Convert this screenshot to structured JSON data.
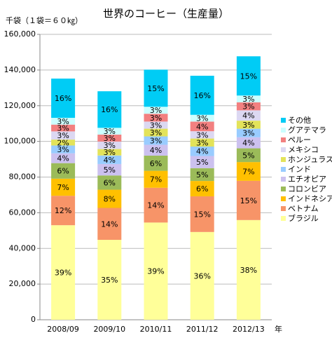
{
  "chart_data": {
    "type": "stacked_bar",
    "title": "世界のコーヒー（生産量）",
    "y_axis_label": "千袋（１袋＝６０㎏）",
    "x_axis_label": "年",
    "categories": [
      "2008/09",
      "2009/10",
      "2010/11",
      "2011/12",
      "2012/13"
    ],
    "ylim": [
      0,
      160000
    ],
    "yticks": [
      0,
      {
        "value": 20000,
        "label": "20,000"
      },
      {
        "value": 40000,
        "label": "40,000"
      },
      {
        "value": 60000,
        "label": "60,000"
      },
      {
        "value": 80000,
        "label": "80,000"
      },
      {
        "value": 100000,
        "label": "100,000"
      },
      {
        "value": 120000,
        "label": "120,000"
      },
      {
        "value": 140000,
        "label": "140,000"
      },
      {
        "value": 160000,
        "label": "160,000"
      }
    ],
    "grid": true,
    "legend": "right",
    "series": [
      {
        "name": "ブラジル",
        "color": "#ffff99",
        "values": [
          53000,
          44800,
          54500,
          49200,
          55900
        ],
        "value_labels": [
          "39%",
          "35%",
          "39%",
          "36%",
          "38%"
        ]
      },
      {
        "name": "ベトナム",
        "color": "#f79468",
        "values": [
          16500,
          17900,
          19500,
          20000,
          22000
        ],
        "value_labels": [
          "12%",
          "14%",
          "14%",
          "15%",
          "15%"
        ]
      },
      {
        "name": "インドネシア",
        "color": "#ffc000",
        "values": [
          9600,
          10200,
          9500,
          8600,
          10500
        ],
        "value_labels": [
          "7%",
          "8%",
          "7%",
          "6%",
          "7%"
        ]
      },
      {
        "name": "コロンビア",
        "color": "#9bbb59",
        "values": [
          8700,
          8000,
          8500,
          7200,
          7700
        ],
        "value_labels": [
          "6%",
          "6%",
          "6%",
          "5%",
          "5%"
        ]
      },
      {
        "name": "エチオピア",
        "color": "#ccc1ef",
        "values": [
          5500,
          6400,
          6100,
          6800,
          6200
        ],
        "value_labels": [
          "4%",
          "5%",
          "4%",
          "5%",
          "4%"
        ]
      },
      {
        "name": "インド",
        "color": "#99ccff",
        "values": [
          4400,
          4800,
          4700,
          5300,
          4800
        ],
        "value_labels": [
          "3%",
          "4%",
          "3%",
          "4%",
          "3%"
        ]
      },
      {
        "name": "ホンジュラス",
        "color": "#e3e35a",
        "values": [
          3300,
          3600,
          4300,
          4500,
          4500
        ],
        "value_labels": [
          "2%",
          "3%",
          "3%",
          "3%",
          "3%"
        ]
      },
      {
        "name": "メキシコ",
        "color": "#dcd8f2",
        "values": [
          4600,
          4200,
          4000,
          4100,
          5800
        ],
        "value_labels": [
          "3%",
          "3%",
          "3%",
          "3%",
          "4%"
        ]
      },
      {
        "name": "ペルー",
        "color": "#f28080",
        "values": [
          3800,
          3900,
          4400,
          5400,
          4500
        ],
        "value_labels": [
          "3%",
          "3%",
          "3%",
          "4%",
          "3%"
        ]
      },
      {
        "name": "グアテマラ",
        "color": "#ccffff",
        "values": [
          3800,
          3800,
          3900,
          3800,
          3800
        ],
        "value_labels": [
          "3%",
          "3%",
          "3%",
          "3%",
          "3%"
        ]
      },
      {
        "name": "その他",
        "color": "#00ccf5",
        "values": [
          22000,
          20500,
          20800,
          21900,
          22000
        ],
        "value_labels": [
          "16%",
          "16%",
          "15%",
          "16%",
          "15%"
        ]
      }
    ]
  }
}
